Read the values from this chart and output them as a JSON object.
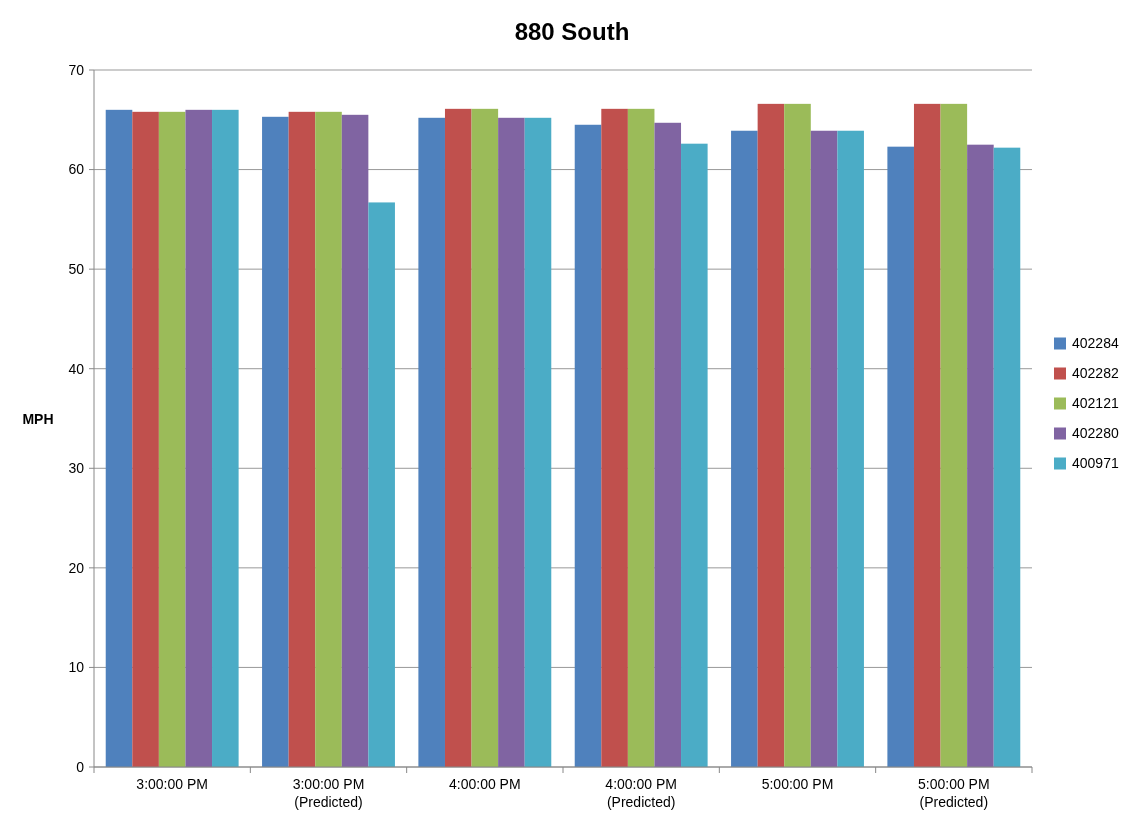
{
  "chart_data": {
    "type": "bar",
    "title": "880 South",
    "ylabel": "MPH",
    "categories": [
      "3:00:00 PM",
      "3:00:00 PM\n(Predicted)",
      "4:00:00 PM",
      "4:00:00 PM\n(Predicted)",
      "5:00:00 PM",
      "5:00:00 PM\n(Predicted)"
    ],
    "series": [
      {
        "name": "402284",
        "color": "#4f81bd",
        "values": [
          66.0,
          65.3,
          65.2,
          64.5,
          63.9,
          62.3
        ]
      },
      {
        "name": "402282",
        "color": "#c0504d",
        "values": [
          65.8,
          65.8,
          66.1,
          66.1,
          66.6,
          66.6
        ]
      },
      {
        "name": "402121",
        "color": "#9bbb59",
        "values": [
          65.8,
          65.8,
          66.1,
          66.1,
          66.6,
          66.6
        ]
      },
      {
        "name": "402280",
        "color": "#8064a2",
        "values": [
          66.0,
          65.5,
          65.2,
          64.7,
          63.9,
          62.5
        ]
      },
      {
        "name": "400971",
        "color": "#4bacc6",
        "values": [
          66.0,
          56.7,
          65.2,
          62.6,
          63.9,
          62.2
        ]
      }
    ],
    "ylim": [
      0,
      70
    ],
    "yticks": [
      0,
      10,
      20,
      30,
      40,
      50,
      60,
      70
    ],
    "grid": "y",
    "legend": "right"
  }
}
